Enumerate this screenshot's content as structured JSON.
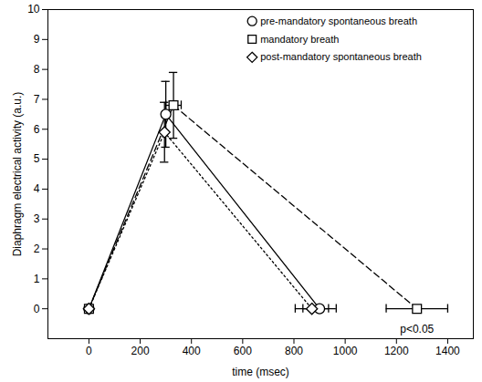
{
  "chart_data": {
    "type": "line",
    "x_label": "time (msec)",
    "y_label": "Diaphragm electrical activity (a.u.)",
    "xlim": [
      -160,
      1500
    ],
    "ylim": [
      -1,
      10
    ],
    "xticks": [
      0,
      200,
      400,
      600,
      800,
      1000,
      1200,
      1400
    ],
    "yticks": [
      0,
      1,
      2,
      3,
      4,
      5,
      6,
      7,
      8,
      9,
      10
    ],
    "grid": false,
    "legend": "top-right",
    "series": [
      {
        "name": "pre-mandatory spontaneous breath",
        "color": "#000000",
        "marker": "circle",
        "line_style": "solid",
        "x": [
          0,
          300,
          900
        ],
        "values": [
          0,
          6.5,
          0
        ],
        "y_err": [
          null,
          1.1,
          null
        ],
        "x_err": [
          null,
          null,
          65
        ]
      },
      {
        "name": "mandatory breath",
        "color": "#000000",
        "marker": "square",
        "line_style": "dashed",
        "x": [
          0,
          330,
          1280
        ],
        "values": [
          0,
          6.8,
          0
        ],
        "y_err": [
          null,
          1.1,
          null
        ],
        "x_err": [
          null,
          30,
          120
        ]
      },
      {
        "name": "post-mandatory spontaneous breath",
        "color": "#000000",
        "marker": "diamond",
        "line_style": "dotted",
        "x": [
          0,
          295,
          870
        ],
        "values": [
          0,
          5.9,
          0
        ],
        "y_err": [
          null,
          1.0,
          null
        ],
        "x_err": [
          null,
          null,
          65
        ]
      }
    ],
    "annotations": [
      {
        "text": "p<0.05",
        "x": 1280,
        "y": -0.5
      }
    ]
  }
}
